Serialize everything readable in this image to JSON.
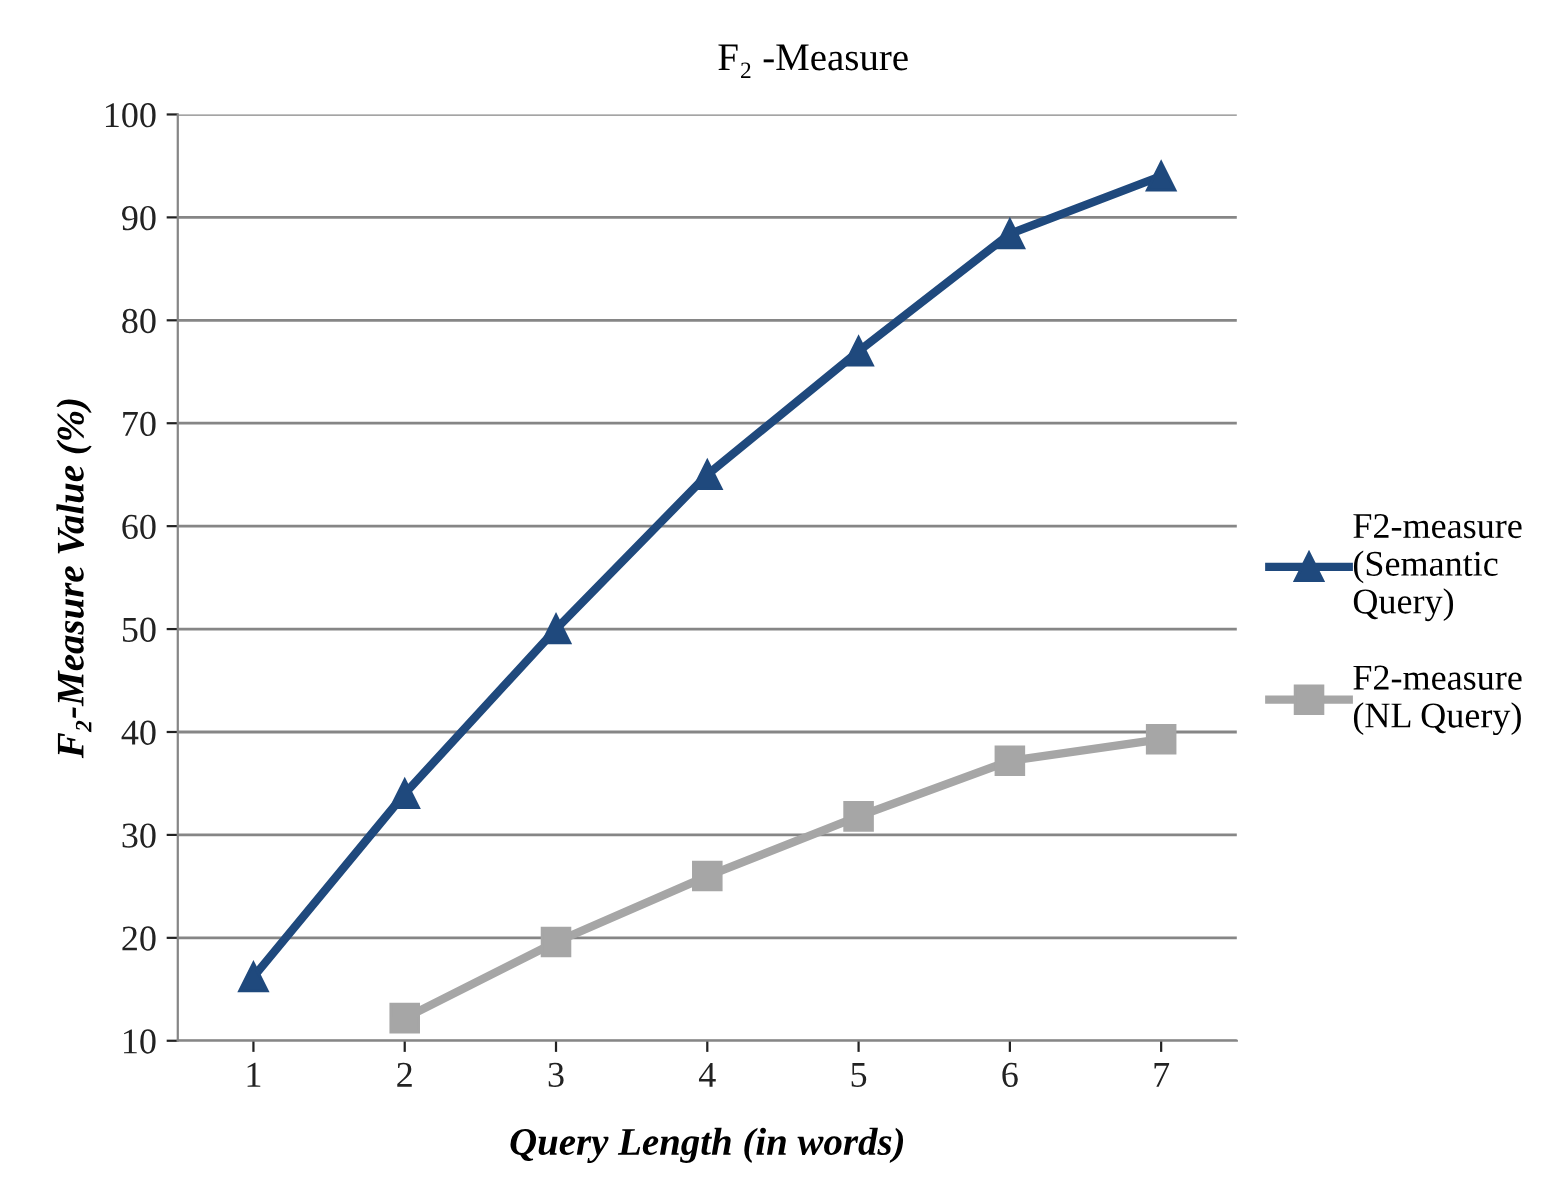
{
  "chart_data": {
    "type": "line",
    "title": "F₂ -Measure",
    "xlabel": "Query Length (in words)",
    "ylabel": "F₂-Measure Value (%)",
    "categories": [
      "1",
      "2",
      "3",
      "4",
      "5",
      "6",
      "7"
    ],
    "series": [
      {
        "name": "F2-measure\n(Semantic\nQuery)",
        "color": "#1f497d",
        "marker": "triangle",
        "values": [
          16.2,
          34,
          50,
          65,
          77,
          88.4,
          94
        ]
      },
      {
        "name": "F2-measure\n(NL Query)",
        "color": "#a6a6a6",
        "marker": "square",
        "values": [
          null,
          12.2,
          19.6,
          26,
          31.8,
          37.2,
          39.3
        ]
      }
    ],
    "ylim": [
      10,
      100
    ],
    "yticks": [
      10,
      20,
      30,
      40,
      50,
      60,
      70,
      80,
      90,
      100
    ],
    "grid": "y",
    "legend": "right",
    "line_style": "solid"
  }
}
